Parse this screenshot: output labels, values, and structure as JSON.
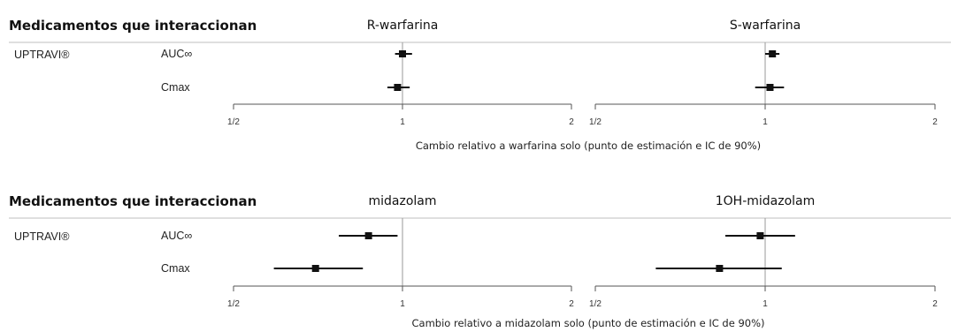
{
  "chart_data": [
    {
      "type": "forest",
      "row_header": "Medicamentos que interaccionan",
      "drug": "UPTRAVI®",
      "xlabel": "Cambio relativo a warfarina solo (punto de estimación e IC de 90%)",
      "x_scale": "log2",
      "xlim": [
        0.5,
        2
      ],
      "ticks": [
        {
          "value": 0.5,
          "label": "1/2"
        },
        {
          "value": 1,
          "label": "1"
        },
        {
          "value": 2,
          "label": "2"
        }
      ],
      "panels": [
        {
          "title": "R-warfarina",
          "rows": [
            {
              "label": "AUC∞",
              "estimate": 1.0,
              "ci_low": 0.97,
              "ci_high": 1.04
            },
            {
              "label": "Cmax",
              "estimate": 0.98,
              "ci_low": 0.94,
              "ci_high": 1.03
            }
          ]
        },
        {
          "title": "S-warfarina",
          "rows": [
            {
              "label": "AUC∞",
              "estimate": 1.03,
              "ci_low": 1.0,
              "ci_high": 1.06
            },
            {
              "label": "Cmax",
              "estimate": 1.02,
              "ci_low": 0.96,
              "ci_high": 1.08
            }
          ]
        }
      ]
    },
    {
      "type": "forest",
      "row_header": "Medicamentos que interaccionan",
      "drug": "UPTRAVI®",
      "xlabel": "Cambio relativo a midazolam solo (punto de estimación e IC de 90%)",
      "x_scale": "log2",
      "xlim": [
        0.5,
        2
      ],
      "ticks": [
        {
          "value": 0.5,
          "label": "1/2"
        },
        {
          "value": 1,
          "label": "1"
        },
        {
          "value": 2,
          "label": "2"
        }
      ],
      "panels": [
        {
          "title": "midazolam",
          "rows": [
            {
              "label": "AUC∞",
              "estimate": 0.87,
              "ci_low": 0.77,
              "ci_high": 0.98
            },
            {
              "label": "Cmax",
              "estimate": 0.7,
              "ci_low": 0.59,
              "ci_high": 0.85
            }
          ]
        },
        {
          "title": "1OH-midazolam",
          "rows": [
            {
              "label": "AUC∞",
              "estimate": 0.98,
              "ci_low": 0.85,
              "ci_high": 1.13
            },
            {
              "label": "Cmax",
              "estimate": 0.83,
              "ci_low": 0.64,
              "ci_high": 1.07
            }
          ]
        }
      ]
    }
  ]
}
